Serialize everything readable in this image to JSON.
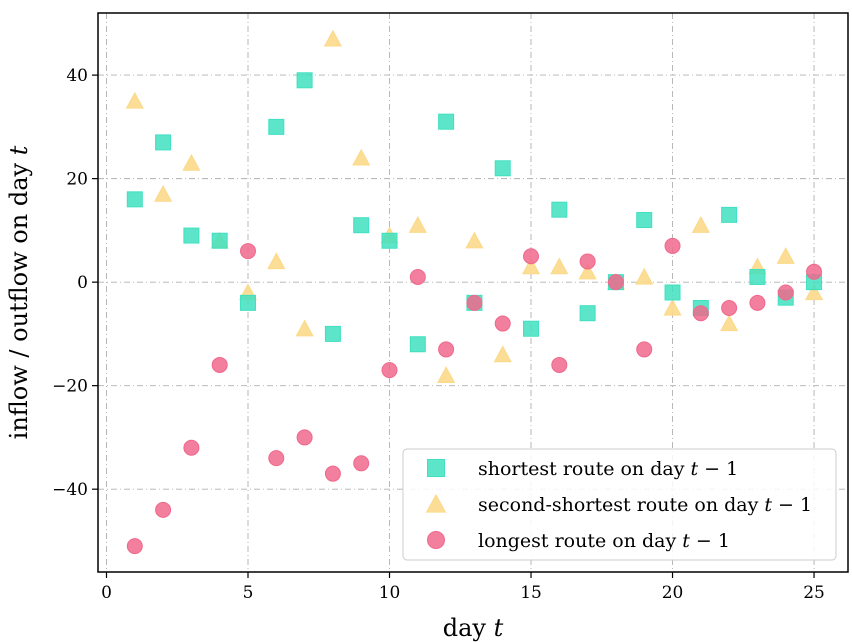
{
  "chart_data": {
    "type": "scatter",
    "xlabel": "day t",
    "ylabel": "inflow / outflow on day t",
    "xlim": [
      -0.3,
      26.2
    ],
    "ylim": [
      -56,
      52
    ],
    "xticks": [
      0,
      5,
      10,
      15,
      20,
      25
    ],
    "yticks": [
      -40,
      -20,
      0,
      20,
      40
    ],
    "grid": true,
    "legend_position": "lower-right",
    "x": [
      1,
      2,
      3,
      4,
      5,
      6,
      7,
      8,
      9,
      10,
      11,
      12,
      13,
      14,
      15,
      16,
      17,
      18,
      19,
      20,
      21,
      22,
      23,
      24,
      25
    ],
    "series": [
      {
        "name": "shortest route on day t − 1",
        "marker": "square",
        "color": "#40E0C0",
        "values": [
          16,
          27,
          9,
          8,
          -4,
          30,
          39,
          -10,
          11,
          8,
          -12,
          31,
          -4,
          22,
          -9,
          14,
          -6,
          0,
          12,
          -2,
          -5,
          13,
          1,
          -3,
          0
        ]
      },
      {
        "name": "second-shortest route on day t − 1",
        "marker": "triangle",
        "color": "#FCD98A",
        "values": [
          35,
          17,
          23,
          8,
          -2,
          4,
          -9,
          47,
          24,
          9,
          11,
          -18,
          8,
          -14,
          3,
          3,
          2,
          0,
          1,
          -5,
          11,
          -8,
          3,
          5,
          -2
        ]
      },
      {
        "name": "longest route on day t − 1",
        "marker": "circle",
        "color": "#F0688C",
        "values": [
          -51,
          -44,
          -32,
          -16,
          6,
          -34,
          -30,
          -37,
          -35,
          -17,
          1,
          -13,
          -4,
          -8,
          5,
          -16,
          4,
          0,
          -13,
          7,
          -6,
          -5,
          -4,
          -2,
          2
        ]
      }
    ]
  }
}
